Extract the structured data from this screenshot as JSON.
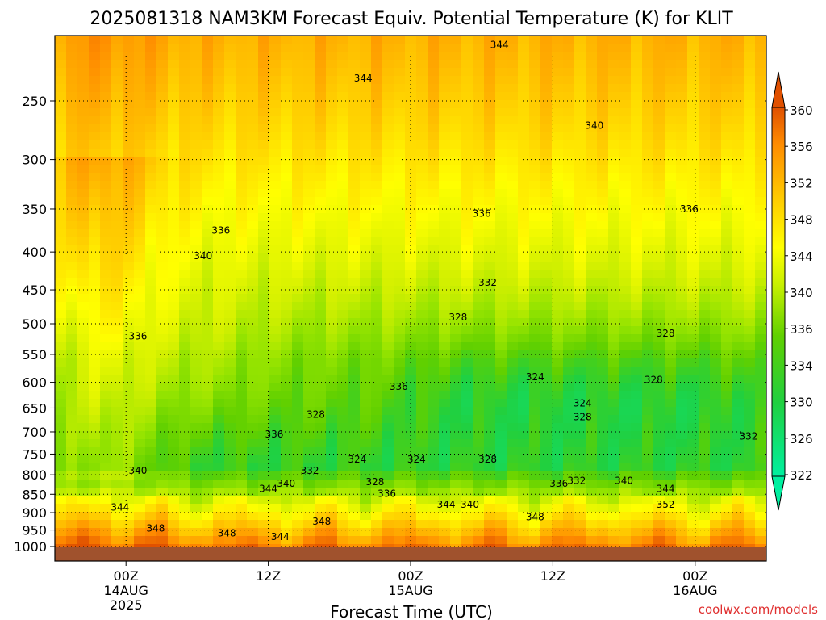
{
  "chart_data": {
    "type": "heatmap",
    "title": "2025081318 NAM3KM Forecast Equiv. Potential Temperature (K) for KLIT",
    "xlabel": "Forecast Time (UTC)",
    "ylabel": "",
    "x_ticks": [
      {
        "hour": 6,
        "label": "00Z",
        "sub": "14AUG",
        "sub2": "2025"
      },
      {
        "hour": 18,
        "label": "12Z",
        "sub": "",
        "sub2": ""
      },
      {
        "hour": 30,
        "label": "00Z",
        "sub": "15AUG",
        "sub2": ""
      },
      {
        "hour": 42,
        "label": "12Z",
        "sub": "",
        "sub2": ""
      },
      {
        "hour": 54,
        "label": "00Z",
        "sub": "16AUG",
        "sub2": ""
      }
    ],
    "xlim_hours": [
      0,
      60
    ],
    "y_ticks_hpa": [
      250,
      300,
      350,
      400,
      450,
      500,
      550,
      600,
      650,
      700,
      750,
      800,
      850,
      900,
      950,
      1000
    ],
    "ylim_hpa": [
      200,
      1000
    ],
    "y_scale": "log",
    "colorbar": {
      "ticks": [
        322,
        326,
        330,
        334,
        336,
        340,
        344,
        348,
        352,
        356,
        360
      ],
      "range": [
        320,
        362
      ]
    },
    "contour_labels": [
      {
        "text": "344",
        "hour": 37.5,
        "p": 210
      },
      {
        "text": "344",
        "hour": 26,
        "p": 233
      },
      {
        "text": "340",
        "hour": 45.5,
        "p": 270
      },
      {
        "text": "336",
        "hour": 14,
        "p": 374
      },
      {
        "text": "336",
        "hour": 36,
        "p": 355
      },
      {
        "text": "336",
        "hour": 53.5,
        "p": 350
      },
      {
        "text": "340",
        "hour": 12.5,
        "p": 405
      },
      {
        "text": "332",
        "hour": 36.5,
        "p": 440
      },
      {
        "text": "336",
        "hour": 7,
        "p": 520
      },
      {
        "text": "328",
        "hour": 34,
        "p": 490
      },
      {
        "text": "328",
        "hour": 51.5,
        "p": 515
      },
      {
        "text": "324",
        "hour": 40.5,
        "p": 590
      },
      {
        "text": "328",
        "hour": 50.5,
        "p": 595
      },
      {
        "text": "336",
        "hour": 29,
        "p": 608
      },
      {
        "text": "324",
        "hour": 44.5,
        "p": 640
      },
      {
        "text": "328",
        "hour": 22,
        "p": 663
      },
      {
        "text": "328",
        "hour": 44.5,
        "p": 668
      },
      {
        "text": "336",
        "hour": 18.5,
        "p": 705
      },
      {
        "text": "332",
        "hour": 58.5,
        "p": 710
      },
      {
        "text": "324",
        "hour": 25.5,
        "p": 762
      },
      {
        "text": "324",
        "hour": 30.5,
        "p": 762
      },
      {
        "text": "328",
        "hour": 36.5,
        "p": 762
      },
      {
        "text": "340",
        "hour": 7,
        "p": 790
      },
      {
        "text": "332",
        "hour": 21.5,
        "p": 790
      },
      {
        "text": "328",
        "hour": 27,
        "p": 818
      },
      {
        "text": "340",
        "hour": 48,
        "p": 815
      },
      {
        "text": "340",
        "hour": 19.5,
        "p": 822
      },
      {
        "text": "336",
        "hour": 42.5,
        "p": 822
      },
      {
        "text": "332",
        "hour": 44,
        "p": 815
      },
      {
        "text": "344",
        "hour": 18,
        "p": 836
      },
      {
        "text": "344",
        "hour": 51.5,
        "p": 836
      },
      {
        "text": "336",
        "hour": 28,
        "p": 848
      },
      {
        "text": "344",
        "hour": 33,
        "p": 878
      },
      {
        "text": "340",
        "hour": 35,
        "p": 878
      },
      {
        "text": "352",
        "hour": 51.5,
        "p": 878
      },
      {
        "text": "344",
        "hour": 5.5,
        "p": 885
      },
      {
        "text": "348",
        "hour": 40.5,
        "p": 912
      },
      {
        "text": "348",
        "hour": 22.5,
        "p": 925
      },
      {
        "text": "348",
        "hour": 8.5,
        "p": 945
      },
      {
        "text": "348",
        "hour": 14.5,
        "p": 960
      },
      {
        "text": "344",
        "hour": 19,
        "p": 970
      }
    ]
  },
  "credit": "coolwx.com/models"
}
